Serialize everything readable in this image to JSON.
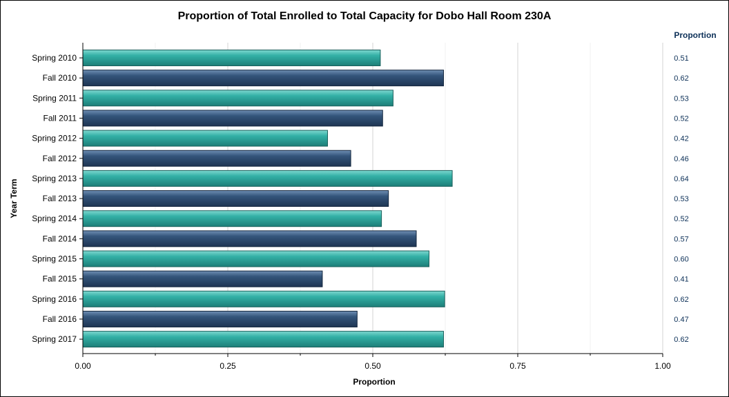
{
  "colors": {
    "spring_bar": "#2ea9a0",
    "fall_bar": "#2f4f73",
    "value_text": "#0b2f57",
    "grid": "#e8e8e8"
  },
  "chart_data": {
    "type": "bar",
    "orientation": "horizontal",
    "title": "Proportion of Total Enrolled to Total Capacity for Dobo Hall Room 230A",
    "xlabel": "Proportion",
    "ylabel": "Year Term",
    "xlim": [
      0,
      1
    ],
    "x_ticks": [
      "0.00",
      "0.25",
      "0.50",
      "0.75",
      "1.00"
    ],
    "grid": true,
    "value_column_header": "Proportion",
    "categories": [
      "Spring 2010",
      "Fall 2010",
      "Spring 2011",
      "Fall 2011",
      "Spring 2012",
      "Fall 2012",
      "Spring 2013",
      "Fall 2013",
      "Spring 2014",
      "Fall 2014",
      "Spring 2015",
      "Fall 2015",
      "Spring 2016",
      "Fall 2016",
      "Spring 2017"
    ],
    "values": [
      0.513,
      0.622,
      0.535,
      0.517,
      0.422,
      0.462,
      0.637,
      0.527,
      0.515,
      0.575,
      0.597,
      0.413,
      0.624,
      0.473,
      0.622
    ],
    "value_labels": [
      "0.51",
      "0.62",
      "0.53",
      "0.52",
      "0.42",
      "0.46",
      "0.64",
      "0.53",
      "0.52",
      "0.57",
      "0.60",
      "0.41",
      "0.62",
      "0.47",
      "0.62"
    ]
  }
}
